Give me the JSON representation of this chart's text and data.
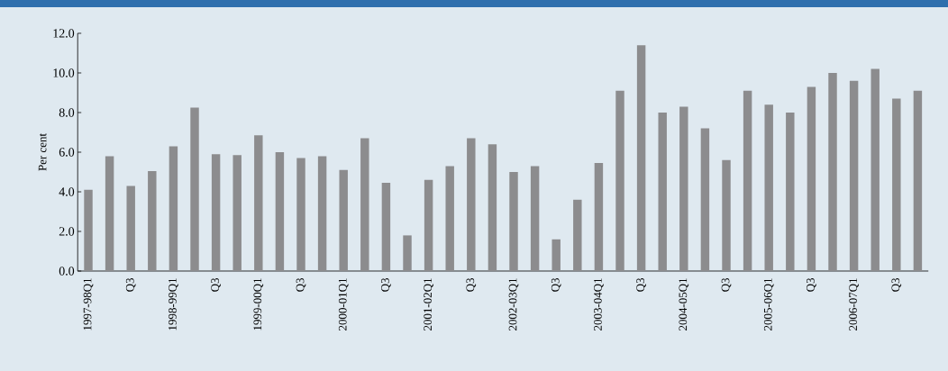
{
  "chart_data": {
    "type": "bar",
    "ylabel": "Per cent",
    "categories": [
      "1997-98Q1",
      null,
      "Q3",
      null,
      "1998-99Q1",
      null,
      "Q3",
      null,
      "1999-00Q1",
      null,
      "Q3",
      null,
      "2000-01Q1",
      null,
      "Q3",
      null,
      "2001-02Q1",
      null,
      "Q3",
      null,
      "2002-03Q1",
      null,
      "Q3",
      null,
      "2003-04Q1",
      null,
      "Q3",
      null,
      "2004-05Q1",
      null,
      "Q3",
      null,
      "2005-06Q1",
      null,
      "Q3",
      null,
      "2006-07Q1",
      null,
      "Q3",
      null
    ],
    "values": [
      4.1,
      5.8,
      4.3,
      5.05,
      6.3,
      8.25,
      5.9,
      5.85,
      6.85,
      6.0,
      5.7,
      5.8,
      5.1,
      6.7,
      4.45,
      1.8,
      4.6,
      5.3,
      6.7,
      6.4,
      5.0,
      5.3,
      1.6,
      3.6,
      5.45,
      9.1,
      11.4,
      8.0,
      8.3,
      7.2,
      5.6,
      9.1,
      8.4,
      8.0,
      9.3,
      10.0,
      9.6,
      10.2,
      8.7,
      9.1
    ],
    "color": "#8c8c8e",
    "ylim": [
      0,
      12
    ],
    "yticks": [
      {
        "value": 0,
        "label": "0.0"
      },
      {
        "value": 2,
        "label": "2.0"
      },
      {
        "value": 4,
        "label": "4.0"
      },
      {
        "value": 6,
        "label": "6.0"
      },
      {
        "value": 8,
        "label": "8.0"
      },
      {
        "value": 10,
        "label": "10.0"
      },
      {
        "value": 12,
        "label": "12.0"
      }
    ],
    "grid": false
  }
}
